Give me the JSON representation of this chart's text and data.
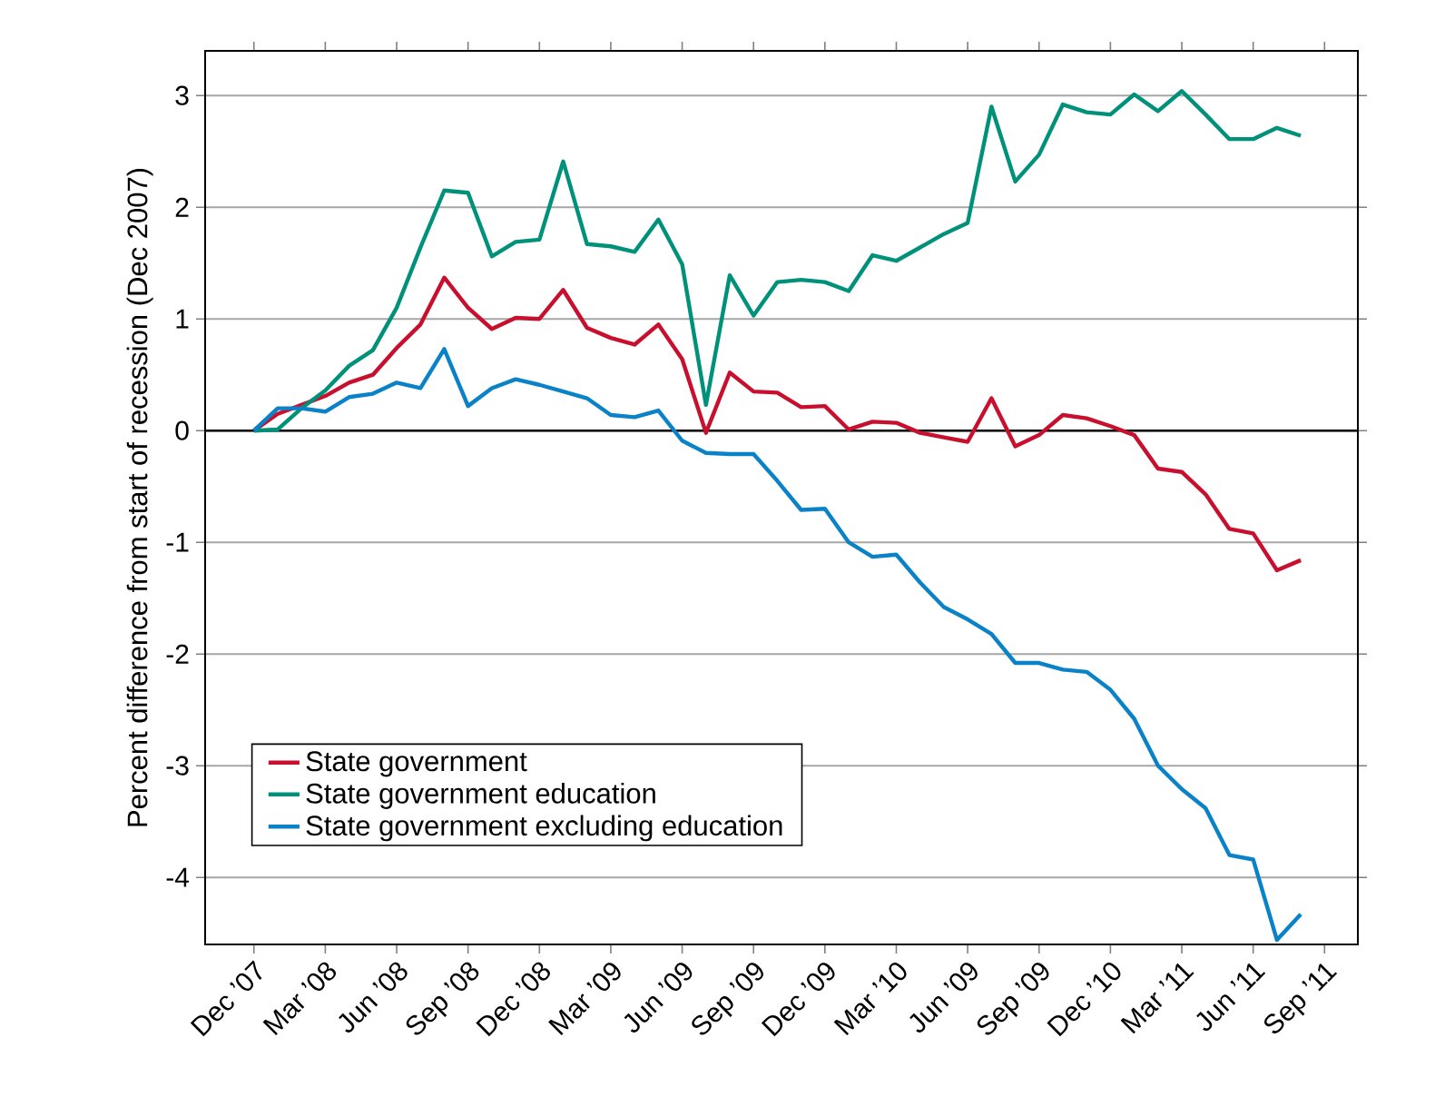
{
  "chart_data": {
    "type": "line",
    "ylabel": "Percent difference from start of recession (Dec 2007)",
    "categories": [
      "Dec ’07",
      null,
      null,
      "Mar ’08",
      null,
      null,
      "Jun ’08",
      null,
      null,
      "Sep ’08",
      null,
      null,
      "Dec ’08",
      null,
      null,
      "Mar ’09",
      null,
      null,
      "Jun ’09",
      null,
      null,
      "Sep ’09",
      null,
      null,
      "Dec ’09",
      null,
      null,
      "Mar ’10",
      null,
      null,
      "Jun ’09",
      null,
      null,
      "Sep ’09",
      null,
      null,
      "Dec ’10",
      null,
      null,
      "Mar ’11",
      null,
      null,
      "Jun ’11",
      null,
      null,
      "Sep ’11"
    ],
    "series": [
      {
        "name": "State government",
        "color": "#c8102e",
        "values": [
          0,
          0.15,
          0.23,
          0.31,
          0.43,
          0.5,
          0.74,
          0.95,
          1.37,
          1.1,
          0.91,
          1.01,
          1.0,
          1.26,
          0.92,
          0.83,
          0.77,
          0.95,
          0.64,
          -0.02,
          0.52,
          0.35,
          0.34,
          0.21,
          0.22,
          0.01,
          0.08,
          0.07,
          -0.02,
          -0.06,
          -0.1,
          0.29,
          -0.14,
          -0.04,
          0.14,
          0.11,
          0.04,
          -0.04,
          -0.34,
          -0.37,
          -0.57,
          -0.88,
          -0.92,
          -1.25,
          -1.16,
          null
        ]
      },
      {
        "name": "State government education",
        "color": "#00917a",
        "values": [
          0,
          0.01,
          0.2,
          0.36,
          0.58,
          0.72,
          1.1,
          1.64,
          2.15,
          2.13,
          1.56,
          1.69,
          1.71,
          2.41,
          1.67,
          1.65,
          1.6,
          1.89,
          1.49,
          0.23,
          1.39,
          1.03,
          1.33,
          1.35,
          1.33,
          1.25,
          1.57,
          1.52,
          1.64,
          1.76,
          1.86,
          2.9,
          2.23,
          2.47,
          2.92,
          2.85,
          2.83,
          3.01,
          2.86,
          3.04,
          2.83,
          2.61,
          2.61,
          2.71,
          2.64,
          null
        ]
      },
      {
        "name": "State government excluding education",
        "color": "#0a82c8",
        "values": [
          0,
          0.2,
          0.2,
          0.17,
          0.3,
          0.33,
          0.43,
          0.38,
          0.73,
          0.22,
          0.38,
          0.46,
          0.41,
          0.35,
          0.29,
          0.14,
          0.12,
          0.18,
          -0.09,
          -0.2,
          -0.21,
          -0.21,
          -0.45,
          -0.71,
          -0.7,
          -1.0,
          -1.13,
          -1.11,
          -1.36,
          -1.58,
          -1.69,
          -1.82,
          -2.08,
          -2.08,
          -2.14,
          -2.16,
          -2.32,
          -2.58,
          -3.0,
          -3.21,
          -3.38,
          -3.8,
          -3.84,
          -4.56,
          -4.33,
          null
        ]
      }
    ],
    "ylim": [
      -4.6,
      3.4
    ],
    "yticks": [
      -4,
      -3,
      -2,
      -1,
      0,
      1,
      2,
      3
    ],
    "grid": "y",
    "legend": "bottom left",
    "marker": "none",
    "line_style": "solid",
    "ref_lines": [
      {
        "axis": "y",
        "value": 0,
        "color": "#000000"
      }
    ]
  }
}
